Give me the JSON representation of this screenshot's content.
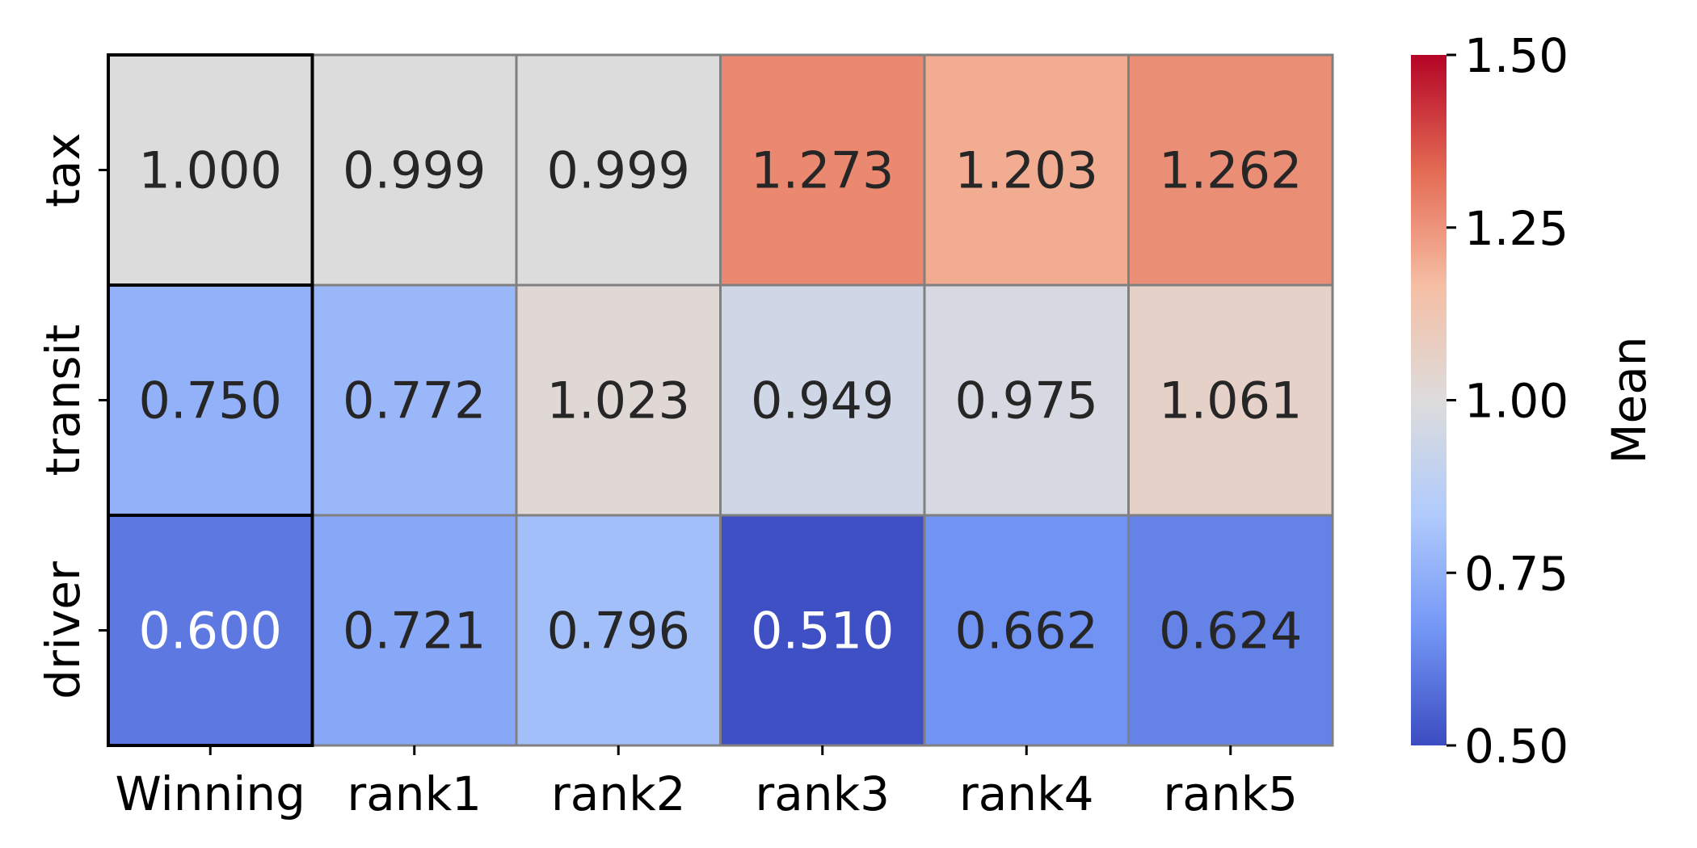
{
  "chart_data": {
    "type": "heatmap",
    "title": "",
    "xlabel": "",
    "ylabel": "",
    "rows": [
      "tax",
      "transit",
      "driver"
    ],
    "columns": [
      "Winning",
      "rank1",
      "rank2",
      "rank3",
      "rank4",
      "rank5"
    ],
    "values": [
      [
        1.0,
        0.999,
        0.999,
        1.273,
        1.203,
        1.262
      ],
      [
        0.75,
        0.772,
        1.023,
        0.949,
        0.975,
        1.061
      ],
      [
        0.6,
        0.721,
        0.796,
        0.51,
        0.662,
        0.624
      ]
    ],
    "value_format": "0.000",
    "highlighted_column": "Winning",
    "colormap": "coolwarm",
    "colormap_stops": [
      "#3b4cc0",
      "#7396f5",
      "#b0cbfc",
      "#dddcdc",
      "#f6bea4",
      "#e36a53",
      "#b40426"
    ],
    "vmin": 0.5,
    "vmax": 1.5,
    "colorbar": {
      "label": "Mean",
      "ticks": [
        "0.50",
        "0.75",
        "1.00",
        "1.25",
        "1.50"
      ],
      "tick_values": [
        0.5,
        0.75,
        1.0,
        1.25,
        1.5
      ]
    },
    "grid": true,
    "gridline_color": "#808080"
  }
}
